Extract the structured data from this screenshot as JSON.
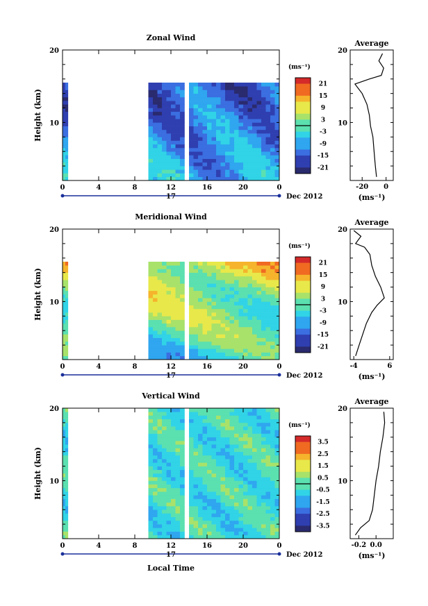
{
  "figure": {
    "xlabel": "Local Time",
    "date_label": "Dec 2012",
    "day_label": "17"
  },
  "chart_data": [
    {
      "type": "heatmap",
      "title": "Zonal Wind",
      "ylabel": "Height (km)",
      "xlim": [
        0,
        24
      ],
      "ylim": [
        2,
        20
      ],
      "x_ticks": [
        "0",
        "4",
        "8",
        "12",
        "16",
        "20",
        "0"
      ],
      "y_ticks": [
        "10",
        "20"
      ],
      "colorbar": {
        "unit": "(ms⁻¹)",
        "range": [
          -24,
          24
        ],
        "ticks": [
          "21",
          "15",
          "9",
          "3",
          "-3",
          "-9",
          "-15",
          "-21"
        ]
      },
      "valid_data": {
        "x_bands": [
          [
            0,
            0.6
          ],
          [
            9.5,
            24
          ]
        ],
        "max_height_km": 15.5
      },
      "profile": {
        "title": "Average",
        "xlabel": "(ms⁻¹)",
        "x_ticks": [
          "-20",
          "0"
        ],
        "xlim": [
          -30,
          6
        ],
        "points": [
          [
            -8,
            2.5
          ],
          [
            -9,
            4
          ],
          [
            -10,
            6
          ],
          [
            -11,
            8
          ],
          [
            -13,
            9.5
          ],
          [
            -14,
            11
          ],
          [
            -16,
            12.5
          ],
          [
            -20,
            14
          ],
          [
            -26,
            15.3
          ],
          [
            -14,
            16
          ],
          [
            -4,
            16.5
          ],
          [
            -2,
            17.5
          ],
          [
            -6,
            18.5
          ],
          [
            -3,
            19.5
          ]
        ]
      }
    },
    {
      "type": "heatmap",
      "title": "Meridional Wind",
      "ylabel": "Height (km)",
      "xlim": [
        0,
        24
      ],
      "ylim": [
        2,
        20
      ],
      "x_ticks": [
        "0",
        "4",
        "8",
        "12",
        "16",
        "20",
        "0"
      ],
      "y_ticks": [
        "10",
        "20"
      ],
      "colorbar": {
        "unit": "(ms⁻¹)",
        "range": [
          -24,
          24
        ],
        "ticks": [
          "21",
          "15",
          "9",
          "3",
          "-3",
          "-9",
          "-15",
          "-21"
        ]
      },
      "valid_data": {
        "x_bands": [
          [
            0,
            0.6
          ],
          [
            9.5,
            24
          ]
        ],
        "max_height_km": 15.5
      },
      "profile": {
        "title": "Average",
        "xlabel": "(ms⁻¹)",
        "x_ticks": [
          "-4",
          "6"
        ],
        "xlim": [
          -5,
          7
        ],
        "points": [
          [
            -3.5,
            2.5
          ],
          [
            -2.5,
            4
          ],
          [
            -1.5,
            5.5
          ],
          [
            -0.5,
            7
          ],
          [
            1,
            8.5
          ],
          [
            2.5,
            9.5
          ],
          [
            4.5,
            10.5
          ],
          [
            3.5,
            12
          ],
          [
            2,
            13.5
          ],
          [
            1,
            15
          ],
          [
            0.5,
            16.5
          ],
          [
            -1,
            17.5
          ],
          [
            -3.5,
            18
          ],
          [
            -2,
            19
          ],
          [
            -4,
            19.8
          ]
        ]
      }
    },
    {
      "type": "heatmap",
      "title": "Vertical Wind",
      "ylabel": "Height (km)",
      "xlim": [
        0,
        24
      ],
      "ylim": [
        2,
        20
      ],
      "x_ticks": [
        "0",
        "4",
        "8",
        "12",
        "16",
        "20",
        "0"
      ],
      "y_ticks": [
        "10",
        "20"
      ],
      "colorbar": {
        "unit": "(ms⁻¹)",
        "range": [
          -4,
          4
        ],
        "ticks": [
          "3.5",
          "2.5",
          "1.5",
          "0.5",
          "-0.5",
          "-1.5",
          "-2.5",
          "-3.5"
        ]
      },
      "valid_data": {
        "x_bands": [
          [
            0,
            0.6
          ],
          [
            9.5,
            24
          ]
        ],
        "max_height_km": 19.8
      },
      "profile": {
        "title": "Average",
        "xlabel": "(ms⁻¹)",
        "x_ticks": [
          "-0.2",
          "0.0"
        ],
        "xlim": [
          -0.3,
          0.2
        ],
        "points": [
          [
            -0.24,
            2.5
          ],
          [
            -0.18,
            3.5
          ],
          [
            -0.08,
            4.5
          ],
          [
            -0.04,
            6
          ],
          [
            -0.02,
            8
          ],
          [
            0.0,
            10
          ],
          [
            0.03,
            12
          ],
          [
            0.05,
            14
          ],
          [
            0.08,
            16
          ],
          [
            0.1,
            18
          ],
          [
            0.09,
            19.5
          ]
        ]
      }
    }
  ]
}
